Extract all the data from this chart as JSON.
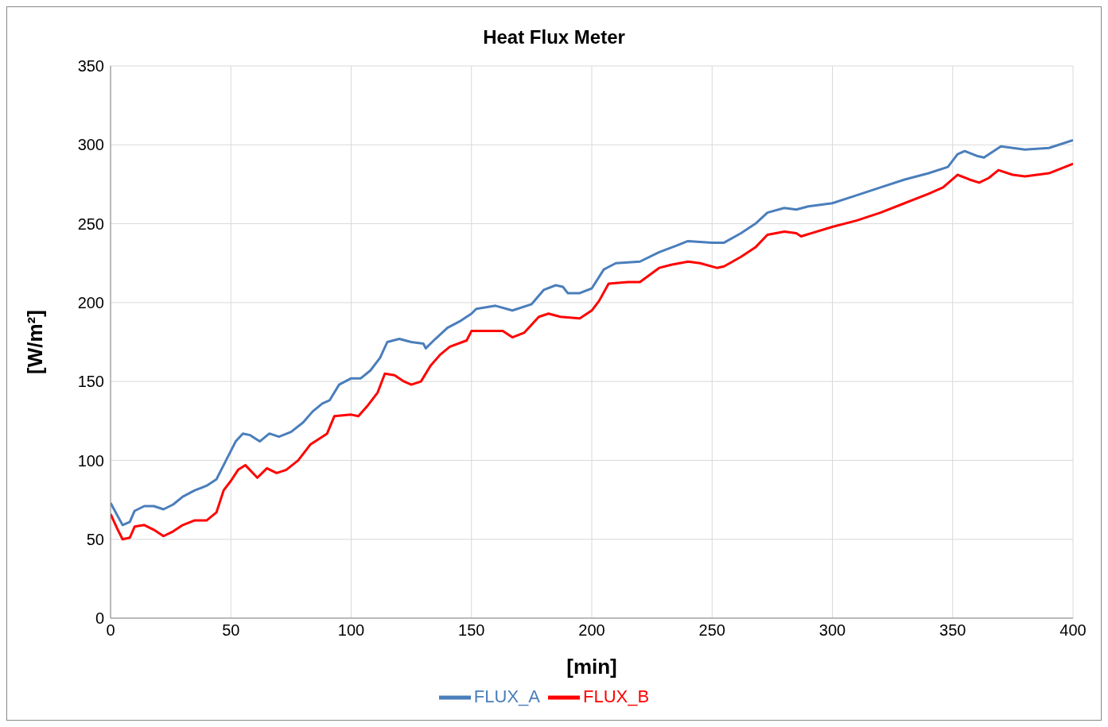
{
  "chart_data": {
    "type": "line",
    "title": "Heat Flux Meter",
    "xlabel": "[min]",
    "ylabel": "[W/m²]",
    "xlim": [
      0,
      400
    ],
    "xticks": [
      0,
      50,
      100,
      150,
      200,
      250,
      300,
      350,
      400
    ],
    "ylim": [
      0,
      350
    ],
    "yticks": [
      0,
      50,
      100,
      150,
      200,
      250,
      300,
      350
    ],
    "grid": true,
    "legend": "bottom",
    "marker": "none",
    "line_style": "solid",
    "series": [
      {
        "name": "FLUX_A",
        "color": "#4a7ebb",
        "x": [
          0,
          5,
          8,
          10,
          14,
          18,
          22,
          26,
          30,
          35,
          40,
          44,
          48,
          52,
          55,
          58,
          62,
          66,
          70,
          75,
          80,
          84,
          88,
          91,
          95,
          100,
          104,
          108,
          112,
          115,
          120,
          125,
          130,
          131,
          135,
          140,
          145,
          150,
          152,
          160,
          167,
          175,
          180,
          185,
          188,
          190,
          195,
          200,
          205,
          210,
          220,
          228,
          235,
          240,
          250,
          255,
          262,
          268,
          273,
          280,
          285,
          290,
          300,
          310,
          320,
          330,
          340,
          348,
          352,
          355,
          360,
          363,
          370,
          375,
          380,
          390,
          400
        ],
        "values": [
          73,
          59,
          61,
          68,
          71,
          71,
          69,
          72,
          77,
          81,
          84,
          88,
          100,
          112,
          117,
          116,
          112,
          117,
          115,
          118,
          124,
          131,
          136,
          138,
          148,
          152,
          152,
          157,
          165,
          175,
          177,
          175,
          174,
          171,
          177,
          184,
          188,
          193,
          196,
          198,
          195,
          199,
          208,
          211,
          210,
          206,
          206,
          209,
          221,
          225,
          226,
          232,
          236,
          239,
          238,
          238,
          244,
          250,
          257,
          260,
          259,
          261,
          263,
          268,
          273,
          278,
          282,
          286,
          294,
          296,
          293,
          292,
          299,
          298,
          297,
          298,
          303
        ]
      },
      {
        "name": "FLUX_B",
        "color": "#ff0000",
        "x": [
          0,
          3,
          5,
          8,
          10,
          14,
          18,
          22,
          26,
          30,
          35,
          40,
          44,
          47,
          50,
          53,
          56,
          61,
          65,
          69,
          73,
          78,
          83,
          88,
          90,
          93,
          100,
          103,
          107,
          111,
          114,
          118,
          122,
          125,
          129,
          133,
          137,
          141,
          148,
          150,
          160,
          163,
          167,
          172,
          178,
          182,
          187,
          195,
          200,
          203,
          207,
          215,
          220,
          228,
          233,
          240,
          245,
          252,
          255,
          262,
          268,
          273,
          280,
          285,
          287,
          300,
          310,
          320,
          330,
          340,
          346,
          352,
          357,
          361,
          365,
          369,
          375,
          380,
          390,
          400
        ],
        "values": [
          66,
          56,
          50,
          51,
          58,
          59,
          56,
          52,
          55,
          59,
          62,
          62,
          67,
          81,
          87,
          94,
          97,
          89,
          95,
          92,
          94,
          100,
          110,
          115,
          117,
          128,
          129,
          128,
          135,
          143,
          155,
          154,
          150,
          148,
          150,
          160,
          167,
          172,
          176,
          182,
          182,
          182,
          178,
          181,
          191,
          193,
          191,
          190,
          195,
          201,
          212,
          213,
          213,
          222,
          224,
          226,
          225,
          222,
          223,
          229,
          235,
          243,
          245,
          244,
          242,
          248,
          252,
          257,
          263,
          269,
          273,
          281,
          278,
          276,
          279,
          284,
          281,
          280,
          282,
          288
        ]
      }
    ]
  }
}
